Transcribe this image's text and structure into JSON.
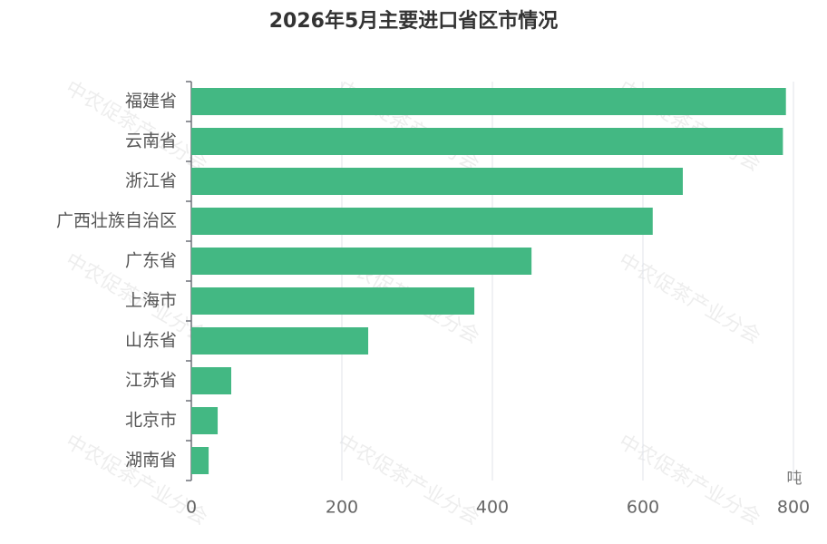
{
  "chart_data": {
    "type": "hbar",
    "title": "2026年5月主要进口省区市情况",
    "categories": [
      "福建省",
      "云南省",
      "浙江省",
      "广西壮族自治区",
      "广东省",
      "上海市",
      "山东省",
      "江苏省",
      "北京市",
      "湖南省"
    ],
    "values": [
      790,
      786,
      653,
      613,
      452,
      376,
      235,
      53,
      35,
      23
    ],
    "color": "#43b883",
    "xlim": [
      0,
      800
    ],
    "xticks": [
      0,
      200,
      400,
      600,
      800
    ],
    "x_axis_label": "吨",
    "grid": true,
    "watermark": "中农促茶产业分会"
  }
}
